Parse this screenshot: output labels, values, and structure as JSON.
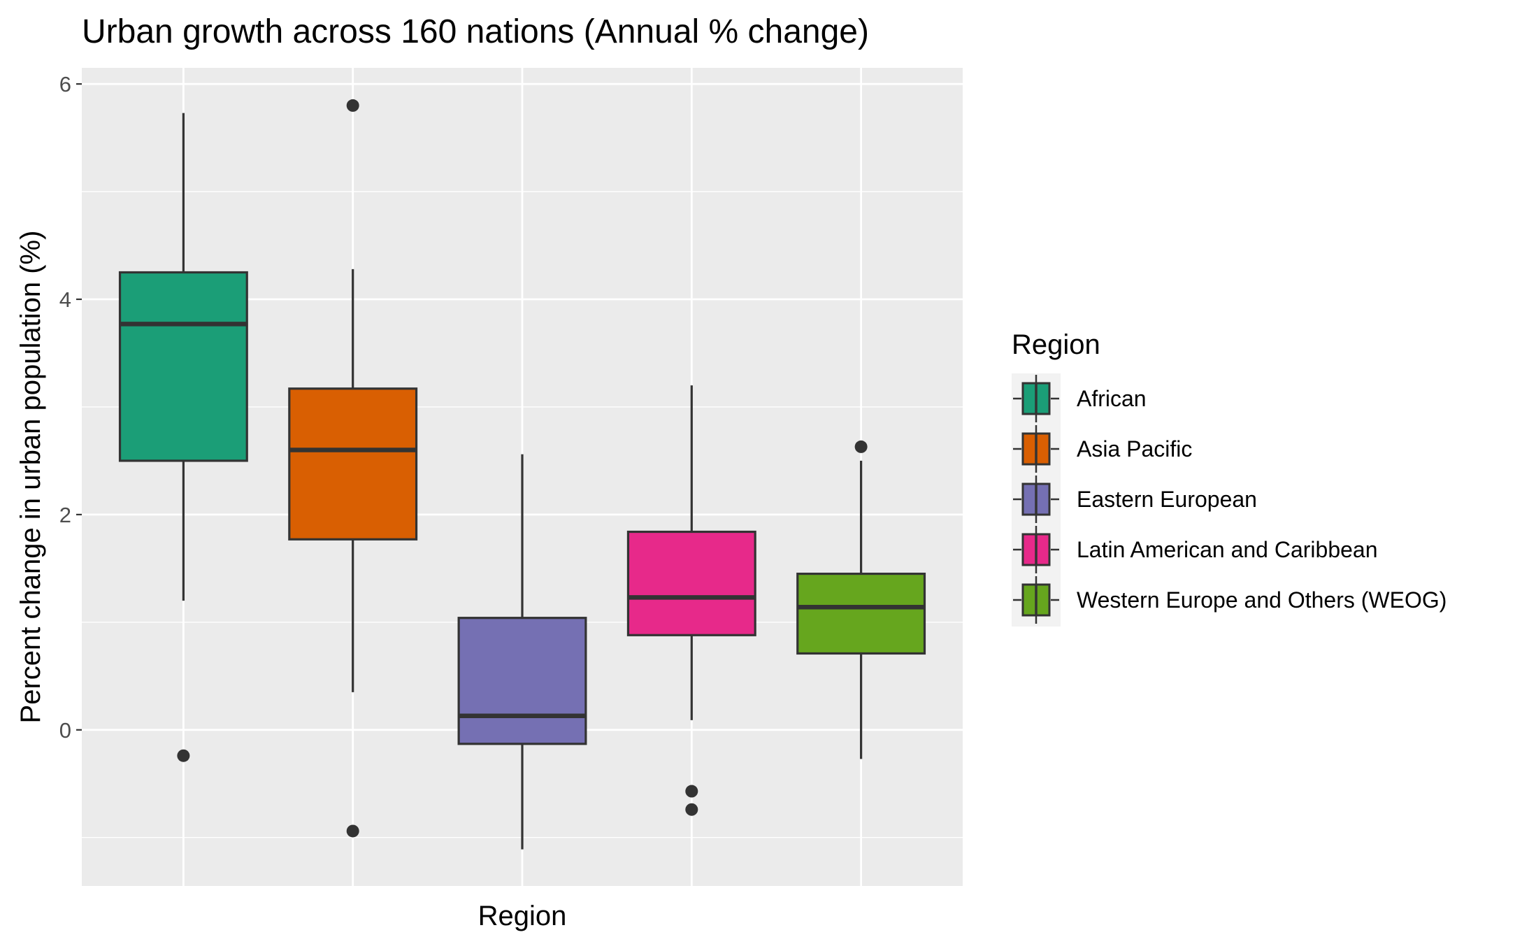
{
  "chart_data": {
    "type": "boxplot",
    "title": "Urban growth across 160 nations (Annual % change)",
    "xlabel": "Region",
    "ylabel": "Percent change in urban population (%)",
    "ylim": [
      -1.45,
      6.15
    ],
    "yticks": [
      0,
      2,
      4,
      6
    ],
    "grid": true,
    "legend": {
      "title": "Region",
      "position": "right"
    },
    "series": [
      {
        "name": "African",
        "color": "#1b9e77",
        "whisker_low": 1.2,
        "q1": 2.5,
        "median": 3.77,
        "q3": 4.25,
        "whisker_high": 5.73,
        "outliers": [
          -0.24
        ]
      },
      {
        "name": "Asia Pacific",
        "color": "#d95f02",
        "whisker_low": 0.35,
        "q1": 1.77,
        "median": 2.6,
        "q3": 3.17,
        "whisker_high": 4.28,
        "outliers": [
          5.8,
          -0.94
        ]
      },
      {
        "name": "Eastern European",
        "color": "#7570b3",
        "whisker_low": -1.11,
        "q1": -0.13,
        "median": 0.13,
        "q3": 1.04,
        "whisker_high": 2.56,
        "outliers": []
      },
      {
        "name": "Latin American and Caribbean",
        "color": "#e7298a",
        "whisker_low": 0.09,
        "q1": 0.88,
        "median": 1.23,
        "q3": 1.84,
        "whisker_high": 3.2,
        "outliers": [
          -0.57,
          -0.74
        ]
      },
      {
        "name": "Western Europe and Others (WEOG)",
        "color": "#66a61e",
        "whisker_low": -0.27,
        "q1": 0.71,
        "median": 1.14,
        "q3": 1.45,
        "whisker_high": 2.5,
        "outliers": [
          2.63
        ]
      }
    ]
  }
}
